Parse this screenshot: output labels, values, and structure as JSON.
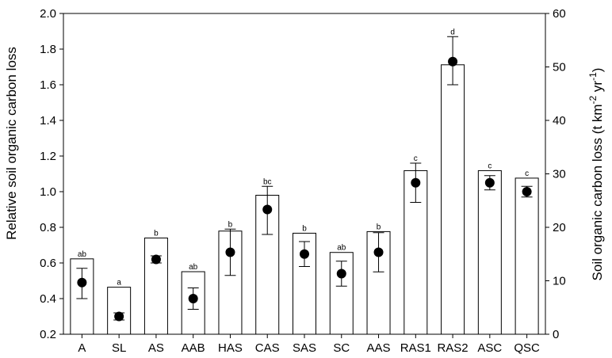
{
  "chart_data": {
    "type": "bar",
    "categories": [
      "A",
      "SL",
      "AS",
      "AAB",
      "HAS",
      "CAS",
      "SAS",
      "SC",
      "AAS",
      "RAS1",
      "RAS2",
      "ASC",
      "QSC"
    ],
    "series": [
      {
        "axis": "right",
        "mark": "bar",
        "values": [
          14.1,
          8.8,
          18.0,
          11.7,
          19.3,
          26.0,
          18.9,
          15.3,
          19.2,
          30.6,
          50.4,
          30.6,
          29.2
        ]
      },
      {
        "axis": "left",
        "mark": "point",
        "values": [
          0.49,
          0.3,
          0.62,
          0.4,
          0.66,
          0.9,
          0.65,
          0.54,
          0.66,
          1.05,
          1.73,
          1.05,
          1.0
        ],
        "error_low": [
          0.4,
          0.28,
          0.6,
          0.34,
          0.53,
          0.76,
          0.58,
          0.47,
          0.55,
          0.94,
          1.6,
          1.01,
          0.97
        ],
        "error_high": [
          0.57,
          0.32,
          0.64,
          0.46,
          0.79,
          1.03,
          0.72,
          0.61,
          0.77,
          1.16,
          1.87,
          1.09,
          1.03
        ]
      }
    ],
    "significance_labels": [
      "ab",
      "a",
      "b",
      "ab",
      "b",
      "bc",
      "b",
      "ab",
      "b",
      "c",
      "d",
      "c",
      "c"
    ],
    "ylabel": "Relative soil organic carbon loss",
    "y2label_parts": [
      "Soil organic carbon loss (t km",
      "-2",
      " yr",
      "-1",
      ")"
    ],
    "ylim": [
      0.2,
      2.0
    ],
    "y2lim": [
      0,
      60
    ],
    "yticks": [
      "0.2",
      "0.4",
      "0.6",
      "0.8",
      "1.0",
      "1.2",
      "1.4",
      "1.6",
      "1.8",
      "2.0"
    ],
    "y2ticks": [
      "0",
      "10",
      "20",
      "30",
      "40",
      "50",
      "60"
    ],
    "grid": false,
    "legend": "none"
  }
}
